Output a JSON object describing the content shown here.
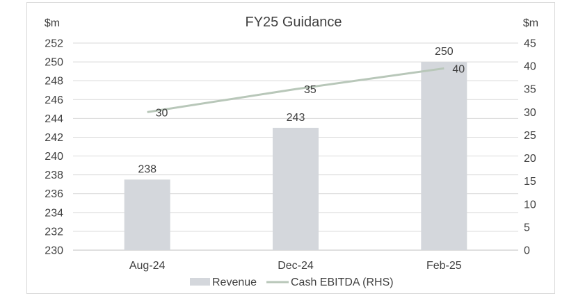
{
  "chart_data": {
    "type": "bar",
    "title": "FY25 Guidance",
    "categories": [
      "Aug-24",
      "Dec-24",
      "Feb-25"
    ],
    "series": [
      {
        "name": "Revenue",
        "kind": "bar",
        "axis": "left",
        "values": [
          237.5,
          243,
          250
        ],
        "labels": [
          "238",
          "243",
          "250"
        ],
        "color": "#d4d7dc"
      },
      {
        "name": "Cash EBITDA (RHS)",
        "kind": "line",
        "axis": "right",
        "values": [
          30,
          35,
          39.5
        ],
        "labels": [
          "30",
          "35",
          "40"
        ],
        "color": "#b8c7b9"
      }
    ],
    "ylabel": "$m",
    "y2label": "$m",
    "ylim": [
      230,
      252
    ],
    "y2lim": [
      0,
      45
    ],
    "yticks": [
      230,
      232,
      234,
      236,
      238,
      240,
      242,
      244,
      246,
      248,
      250,
      252
    ],
    "y2ticks": [
      0,
      5,
      10,
      15,
      20,
      25,
      30,
      35,
      40,
      45
    ],
    "grid": true,
    "legend": "bottom"
  }
}
